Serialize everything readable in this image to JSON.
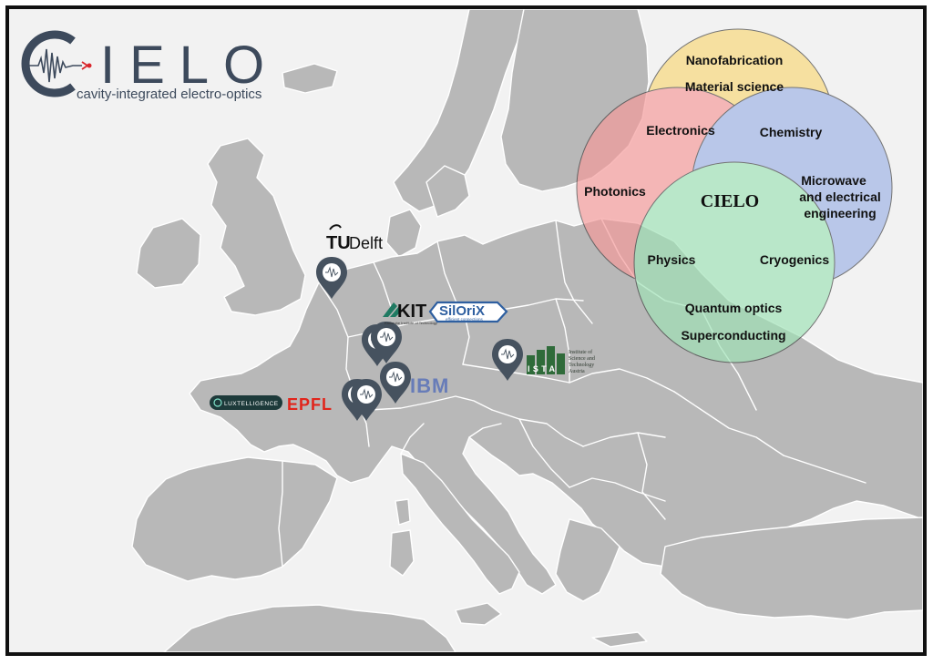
{
  "header": {
    "logo_letters": "CIELO",
    "logo_c": "C",
    "logo_rest": "IELO",
    "subtitle": "cavity-integrated electro-optics"
  },
  "venn": {
    "center": "CIELO",
    "circles": [
      {
        "name": "Nanofabrication / Material science",
        "color": "#f8d87a"
      },
      {
        "name": "Photonics",
        "color": "#f59a9a"
      },
      {
        "name": "Microwave",
        "color": "#9fb4e6"
      },
      {
        "name": "Quantum optics",
        "color": "#9fe2b6"
      }
    ],
    "labels": {
      "nanofabrication": "Nanofabrication",
      "material_science": "Material science",
      "electronics": "Electronics",
      "chemistry": "Chemistry",
      "photonics": "Photonics",
      "microwave_1": "Microwave",
      "microwave_2": "and electrical",
      "microwave_3": "engineering",
      "physics": "Physics",
      "cryogenics": "Cryogenics",
      "quantum_optics": "Quantum optics",
      "superconducting": "Superconducting"
    }
  },
  "partners": {
    "tudelft_tu": "TU",
    "tudelft_delft": "Delft",
    "kit": "KIT",
    "kit_tagline": "Karlsruhe Institute of Technology",
    "siloryx": "SilOriX",
    "siloryx_tagline": "efficient connections",
    "ibm": "IBM",
    "epfl": "EPFL",
    "luxtelligence": "LUXTELLIGENCE",
    "ista": "ISTA",
    "ista_line1": "Institute of",
    "ista_line2": "Science and",
    "ista_line3": "Technology",
    "ista_line4": "Austria"
  },
  "colors": {
    "land": "#b8b8b8",
    "sea": "#f2f2f2",
    "pin": "#46525f",
    "logo": "#3d4a5c",
    "laser": "#d9262c",
    "epfl": "#e1251b",
    "ibm": "#5a72b8",
    "ista": "#2f6b3a",
    "siloryx": "#2e5fa0",
    "luxtelligence": "#1d3a3a"
  }
}
